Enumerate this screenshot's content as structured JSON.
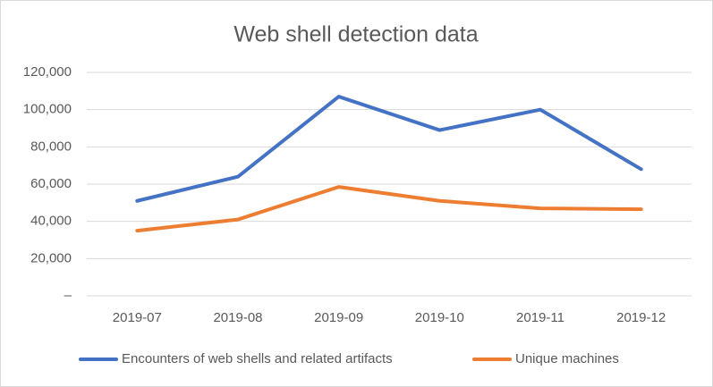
{
  "chart_data": {
    "type": "line",
    "title": "Web shell detection data",
    "categories": [
      "2019-07",
      "2019-08",
      "2019-09",
      "2019-10",
      "2019-11",
      "2019-12"
    ],
    "series": [
      {
        "name": "Encounters of web shells and related artifacts",
        "color": "#4472c4",
        "values": [
          51000,
          64000,
          107000,
          89000,
          100000,
          68000
        ]
      },
      {
        "name": "Unique machines",
        "color": "#ed7d31",
        "values": [
          35000,
          41000,
          58500,
          51000,
          47000,
          46500
        ]
      }
    ],
    "ylim": [
      0,
      120000
    ],
    "yticks": [
      {
        "value": 0,
        "label": "–"
      },
      {
        "value": 20000,
        "label": "20,000"
      },
      {
        "value": 40000,
        "label": "40,000"
      },
      {
        "value": 60000,
        "label": "60,000"
      },
      {
        "value": 80000,
        "label": "80,000"
      },
      {
        "value": 100000,
        "label": "100,000"
      },
      {
        "value": 120000,
        "label": "120,000"
      }
    ],
    "grid": true,
    "legend": "bottom"
  }
}
